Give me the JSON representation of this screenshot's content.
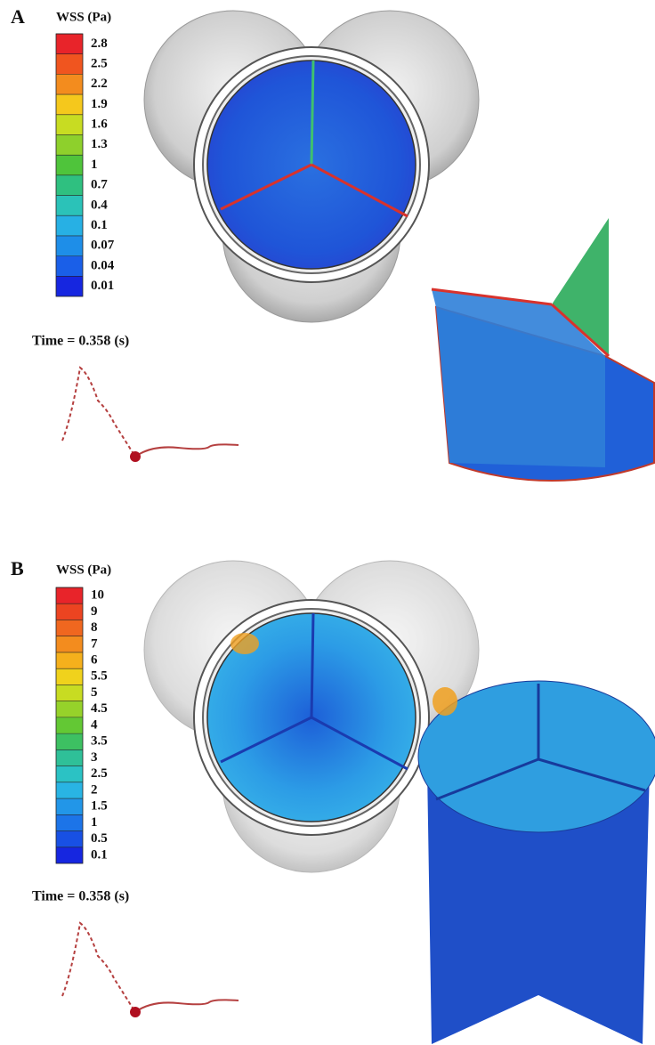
{
  "panels": [
    {
      "label": "A",
      "legend_title": "WSS (Pa)",
      "legend_labels": [
        "2.8",
        "2.5",
        "2.2",
        "1.9",
        "1.6",
        "1.3",
        "1",
        "0.7",
        "0.4",
        "0.1",
        "0.07",
        "0.04",
        "0.01"
      ],
      "legend_colors": [
        "#e8242a",
        "#f0551f",
        "#f38c1e",
        "#f5c81c",
        "#c8dc22",
        "#8ed02c",
        "#4fc43b",
        "#2fc080",
        "#2bc2b8",
        "#27b0e4",
        "#1e8ee8",
        "#1a5fe8",
        "#1626e0"
      ],
      "time_text": "Time = 0.358 (s)"
    },
    {
      "label": "B",
      "legend_title": "WSS (Pa)",
      "legend_labels": [
        "10",
        "9",
        "8",
        "7",
        "6",
        "5.5",
        "5",
        "4.5",
        "4",
        "3.5",
        "3",
        "2.5",
        "2",
        "1.5",
        "1",
        "0.5",
        "0.1"
      ],
      "legend_colors": [
        "#e8242a",
        "#ec4421",
        "#f0671f",
        "#f38c1e",
        "#f5b01c",
        "#f0d21c",
        "#c8dc22",
        "#96d22a",
        "#63c834",
        "#3dc062",
        "#2fc098",
        "#2bc2c4",
        "#29b4e4",
        "#2296e8",
        "#1c74e8",
        "#1850e4",
        "#1626e0"
      ],
      "time_text": "Time = 0.358 (s)"
    }
  ]
}
